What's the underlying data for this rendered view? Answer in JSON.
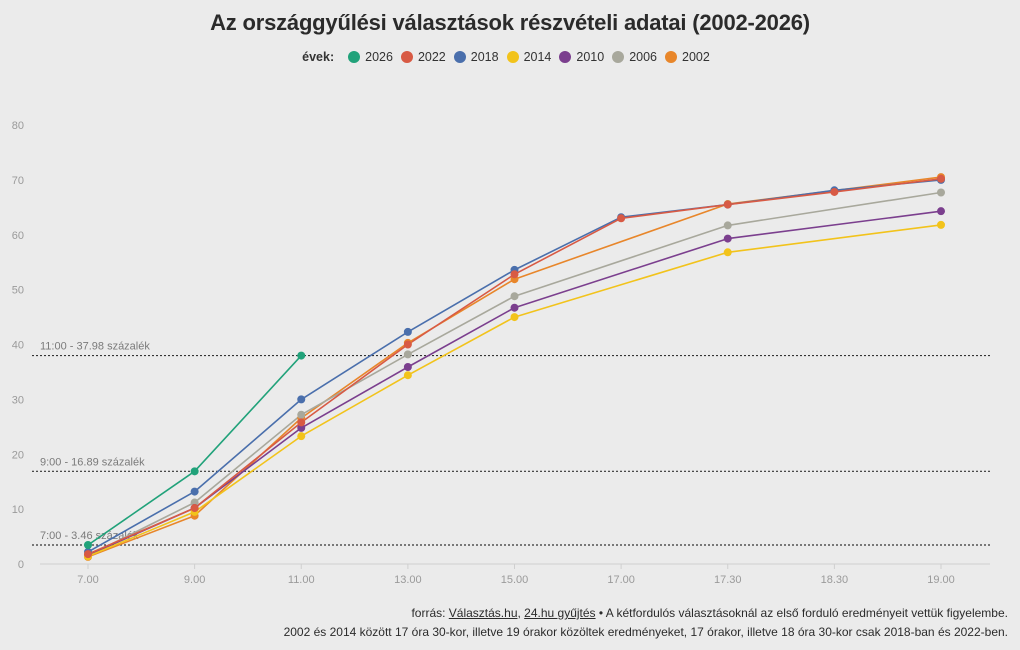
{
  "chart_data": {
    "type": "line",
    "title": "Az országgyűlési választások részvételi adatai (2002-2026)",
    "legend_title": "évek:",
    "categories": [
      "7.00",
      "9.00",
      "11.00",
      "13.00",
      "15.00",
      "17.00",
      "17.30",
      "18.30",
      "19.00"
    ],
    "yticks": [
      0,
      10,
      20,
      30,
      40,
      50,
      60,
      70,
      80
    ],
    "ylim": [
      0,
      80
    ],
    "series": [
      {
        "name": "2026",
        "color": "#21a27a",
        "values": [
          3.46,
          16.89,
          37.98,
          null,
          null,
          null,
          null,
          null,
          null
        ]
      },
      {
        "name": "2022",
        "color": "#d85a44",
        "values": [
          1.8,
          10.2,
          25.8,
          40.0,
          52.8,
          63.0,
          65.5,
          67.8,
          70.2
        ]
      },
      {
        "name": "2018",
        "color": "#4a6fac",
        "values": [
          2.2,
          13.2,
          30.0,
          42.3,
          53.6,
          63.2,
          65.5,
          68.1,
          70.0
        ]
      },
      {
        "name": "2014",
        "color": "#f2c31b",
        "values": [
          1.4,
          9.5,
          23.3,
          34.4,
          45.0,
          null,
          56.8,
          null,
          61.8
        ]
      },
      {
        "name": "2010",
        "color": "#7b3f8e",
        "values": [
          1.6,
          10.2,
          24.8,
          35.9,
          46.7,
          null,
          59.3,
          null,
          64.3
        ]
      },
      {
        "name": "2006",
        "color": "#a8a89c",
        "values": [
          1.5,
          11.2,
          27.2,
          38.2,
          48.8,
          null,
          61.7,
          null,
          67.7
        ]
      },
      {
        "name": "2002",
        "color": "#e8862a",
        "values": [
          1.3,
          8.8,
          26.6,
          40.3,
          51.9,
          null,
          65.6,
          null,
          70.5
        ]
      }
    ],
    "legend_order": [
      "2026",
      "2022",
      "2018",
      "2014",
      "2010",
      "2006",
      "2002"
    ],
    "reference_lines": [
      {
        "label": "11:00 - 37.98 százalék",
        "value": 37.98
      },
      {
        "label": "9:00 - 16.89 százalék",
        "value": 16.89
      },
      {
        "label": "7:00 - 3.46 százalék",
        "value": 3.46
      }
    ],
    "grid": false
  },
  "footer": {
    "prefix": "forrás: ",
    "source1": "Választás.hu",
    "sep": ", ",
    "source2": "24.hu gyűjtés",
    "note1": " • A kétfordulós választásoknál az első forduló eredményeit vettük figyelembe.",
    "note2": "2002 és 2014 között 17 óra 30-kor, illetve 19 órakor közöltek eredményeket, 17 órakor, illetve 18 óra 30-kor csak 2018-ban és 2022-ben."
  }
}
